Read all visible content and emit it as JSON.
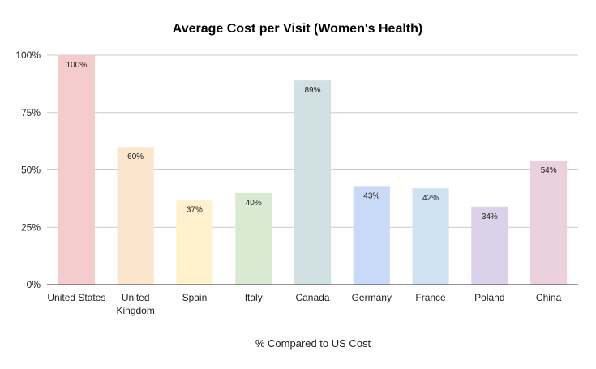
{
  "chart_data": {
    "type": "bar",
    "title": "Average Cost per Visit (Women's Health)",
    "xlabel": "% Compared to US Cost",
    "ylabel": "",
    "ylim": [
      0,
      100
    ],
    "yticks": [
      "0%",
      "25%",
      "50%",
      "75%",
      "100%"
    ],
    "ytick_values": [
      0,
      25,
      50,
      75,
      100
    ],
    "grid": true,
    "legend": "none",
    "categories": [
      "United States",
      "United Kingdom",
      "Spain",
      "Italy",
      "Canada",
      "Germany",
      "France",
      "Poland",
      "China"
    ],
    "values": [
      100,
      60,
      37,
      40,
      89,
      43,
      42,
      34,
      54
    ],
    "data_labels": [
      "100%",
      "60%",
      "37%",
      "40%",
      "89%",
      "43%",
      "42%",
      "34%",
      "54%"
    ],
    "colors": [
      "#f4cccc",
      "#fce5cd",
      "#fff2cc",
      "#d9ead3",
      "#d0e0e3",
      "#c9daf8",
      "#cfe2f3",
      "#d9d2e9",
      "#ead1dc"
    ]
  }
}
